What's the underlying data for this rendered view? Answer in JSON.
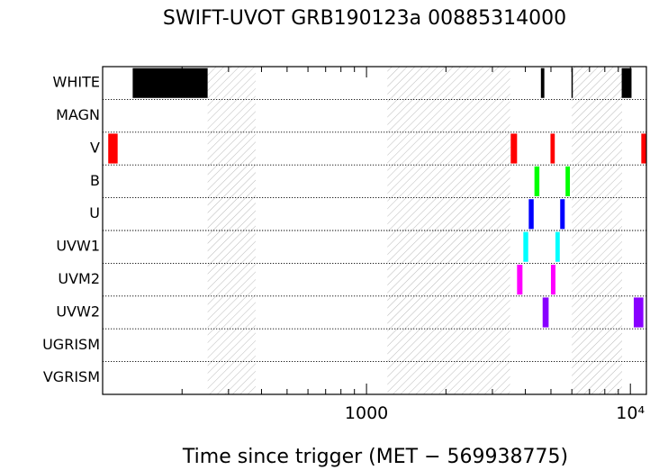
{
  "chart_data": {
    "type": "timeline",
    "title": "SWIFT-UVOT GRB190123a 00885314000",
    "xlabel": "Time since trigger (MET − 569938775)",
    "xscale": "log",
    "xlim": [
      100,
      11500
    ],
    "x_ticks": [
      {
        "value": 1000,
        "label": "1000"
      },
      {
        "value": 10000,
        "label": "10⁴"
      }
    ],
    "filters": [
      "WHITE",
      "MAGN",
      "V",
      "B",
      "U",
      "UVW1",
      "UVM2",
      "UVW2",
      "UGRISM",
      "VGRISM"
    ],
    "gaps": [
      {
        "start": 250,
        "end": 380
      },
      {
        "start": 1200,
        "end": 3500
      },
      {
        "start": 6000,
        "end": 9300
      }
    ],
    "exposures": [
      {
        "filter": "WHITE",
        "start": 130,
        "end": 250,
        "color": "#000000"
      },
      {
        "filter": "WHITE",
        "start": 4580,
        "end": 4720,
        "color": "#000000"
      },
      {
        "filter": "WHITE",
        "start": 5980,
        "end": 6010,
        "color": "#000000"
      },
      {
        "filter": "WHITE",
        "start": 9270,
        "end": 10100,
        "color": "#000000"
      },
      {
        "filter": "V",
        "start": 105,
        "end": 114,
        "color": "#ff0000"
      },
      {
        "filter": "V",
        "start": 3520,
        "end": 3720,
        "color": "#ff0000"
      },
      {
        "filter": "V",
        "start": 4980,
        "end": 5170,
        "color": "#ff0000"
      },
      {
        "filter": "V",
        "start": 11000,
        "end": 11450,
        "color": "#ff0000"
      },
      {
        "filter": "B",
        "start": 4330,
        "end": 4520,
        "color": "#00ff00"
      },
      {
        "filter": "B",
        "start": 5680,
        "end": 5900,
        "color": "#00ff00"
      },
      {
        "filter": "U",
        "start": 4120,
        "end": 4300,
        "color": "#0000ff"
      },
      {
        "filter": "U",
        "start": 5420,
        "end": 5640,
        "color": "#0000ff"
      },
      {
        "filter": "UVW1",
        "start": 3930,
        "end": 4100,
        "color": "#00ffff"
      },
      {
        "filter": "UVW1",
        "start": 5200,
        "end": 5400,
        "color": "#00ffff"
      },
      {
        "filter": "UVM2",
        "start": 3720,
        "end": 3900,
        "color": "#ff00ff"
      },
      {
        "filter": "UVM2",
        "start": 5000,
        "end": 5200,
        "color": "#ff00ff"
      },
      {
        "filter": "UVW2",
        "start": 4650,
        "end": 4900,
        "color": "#8800ff"
      },
      {
        "filter": "UVW2",
        "start": 10300,
        "end": 11200,
        "color": "#8800ff"
      }
    ]
  }
}
